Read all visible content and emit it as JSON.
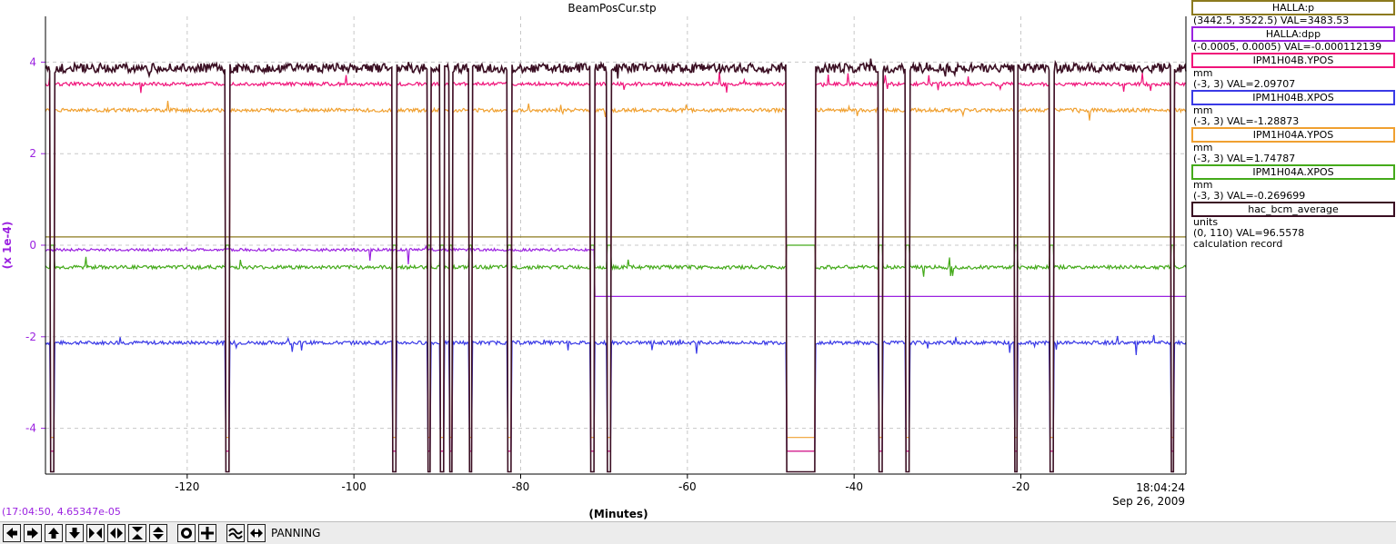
{
  "window": {
    "title": "BeamPosCur.stp"
  },
  "chart_data": {
    "type": "line",
    "title": "BeamPosCur.stp",
    "xlabel": "(Minutes)",
    "ylabel": "(x 1e-4)",
    "xlim": [
      -137,
      -0.2
    ],
    "ylim": [
      -5,
      5
    ],
    "x_ticks": [
      -120,
      -100,
      -80,
      -60,
      -40,
      -20
    ],
    "y_ticks": [
      4,
      2,
      0,
      -2,
      -4
    ],
    "time_label": "18:04:24",
    "date_label": "Sep 26, 2009",
    "grid": true,
    "dropouts": [
      [
        -136.4,
        -135.9
      ],
      [
        -115.4,
        -114.9
      ],
      [
        -95.4,
        -94.9
      ],
      [
        -91.2,
        -90.8
      ],
      [
        -89.7,
        -89.2
      ],
      [
        -88.6,
        -88.2
      ],
      [
        -86.2,
        -85.8
      ],
      [
        -81.6,
        -81.1
      ],
      [
        -71.6,
        -71.1
      ],
      [
        -69.6,
        -69.2
      ],
      [
        -48.2,
        -44.6
      ],
      [
        -37.1,
        -36.6
      ],
      [
        -33.8,
        -33.3
      ],
      [
        -20.8,
        -20.4
      ],
      [
        -16.6,
        -16.1
      ],
      [
        -2.0,
        -1.6
      ]
    ],
    "series": [
      {
        "name": "hac_bcm_average",
        "color": "#3a0e22",
        "values_level": 3.87,
        "dropout_level": -4.95
      },
      {
        "name": "IPM1H04B.YPOS",
        "color": "#f0137a",
        "values_level": 3.52,
        "dropout_level": -4.5
      },
      {
        "name": "IPM1H04A.YPOS",
        "color": "#f0a030",
        "values_level": 2.95,
        "dropout_level": -4.2
      },
      {
        "name": "HALLA:p",
        "color": "#8c7a1e",
        "values_level": 0.18
      },
      {
        "name": "HALLA:dpp",
        "color": "#9b22e0",
        "values_level_before": -0.1,
        "values_level_after": -1.12,
        "step_at": -71.2
      },
      {
        "name": "IPM1H04A.XPOS",
        "color": "#44aa1a",
        "values_level": -0.48,
        "dropout_level": 0.0
      },
      {
        "name": "IPM1H04B.XPOS",
        "color": "#3a3ae6",
        "values_level": -2.13,
        "dropout_level": -4.5
      }
    ]
  },
  "legend": [
    {
      "name": "HALLA:p",
      "color": "#8c7a1e",
      "unit": "",
      "range_val": "(3442.5, 3522.5) VAL=3483.53",
      "extra": ""
    },
    {
      "name": "HALLA:dpp",
      "color": "#9b22e0",
      "unit": "",
      "range_val": "(-0.0005, 0.0005) VAL=-0.000112139",
      "extra": ""
    },
    {
      "name": "IPM1H04B.YPOS",
      "color": "#f0137a",
      "unit": "mm",
      "range_val": "(-3, 3) VAL=2.09707",
      "extra": ""
    },
    {
      "name": "IPM1H04B.XPOS",
      "color": "#3a3ae6",
      "unit": "mm",
      "range_val": "(-3, 3) VAL=-1.28873",
      "extra": ""
    },
    {
      "name": "IPM1H04A.YPOS",
      "color": "#f0a030",
      "unit": "mm",
      "range_val": "(-3, 3) VAL=1.74787",
      "extra": ""
    },
    {
      "name": "IPM1H04A.XPOS",
      "color": "#44aa1a",
      "unit": "mm",
      "range_val": "(-3, 3) VAL=-0.269699",
      "extra": ""
    },
    {
      "name": "hac_bcm_average",
      "color": "#3a0e22",
      "unit": "units",
      "range_val": "(0, 110) VAL=96.5578",
      "extra": "calculation record"
    }
  ],
  "status": {
    "coord_readout": "(17:04:50, 4.65347e-05"
  },
  "toolbar": {
    "buttons": [
      {
        "name": "pan-left-button",
        "icon": "arrow-left-icon"
      },
      {
        "name": "pan-right-button",
        "icon": "arrow-right-icon"
      },
      {
        "name": "pan-up-button",
        "icon": "arrow-up-icon"
      },
      {
        "name": "pan-down-button",
        "icon": "arrow-down-icon"
      },
      {
        "name": "zoom-in-x-button",
        "icon": "zoom-in-x-icon"
      },
      {
        "name": "zoom-out-x-button",
        "icon": "zoom-out-x-icon"
      },
      {
        "name": "zoom-in-y-button",
        "icon": "zoom-in-y-icon"
      },
      {
        "name": "zoom-out-y-button",
        "icon": "zoom-out-y-icon"
      },
      {
        "name": "zoom-box-button",
        "icon": "zoom-box-icon"
      },
      {
        "name": "crosshair-button",
        "icon": "crosshair-icon"
      },
      {
        "name": "autoscale-button",
        "icon": "autoscale-icon"
      },
      {
        "name": "pan-mode-button",
        "icon": "pan-mode-icon"
      }
    ],
    "mode_label": "PANNING"
  }
}
